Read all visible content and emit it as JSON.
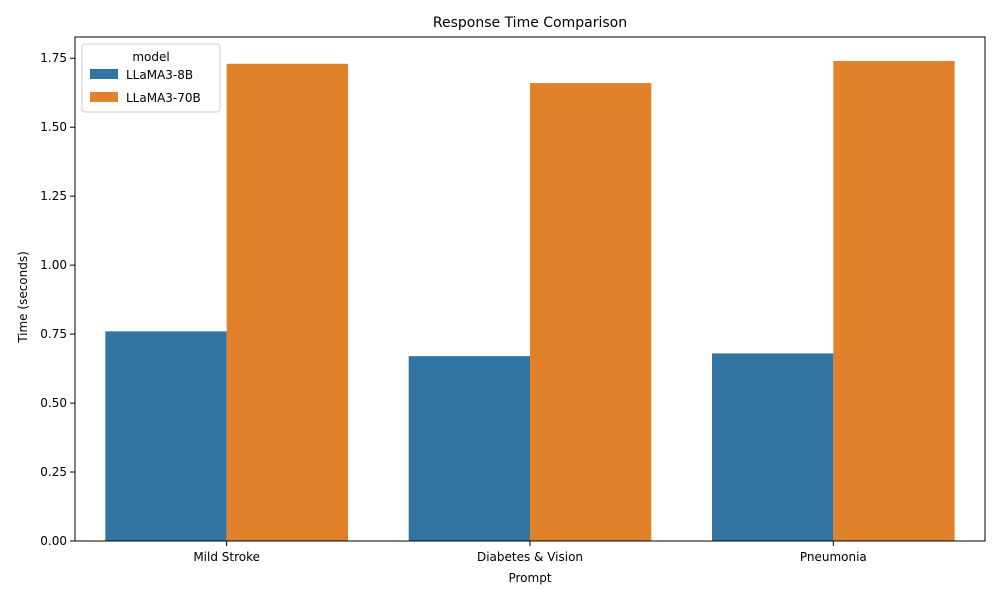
{
  "chart_data": {
    "type": "bar",
    "title": "Response Time Comparison",
    "xlabel": "Prompt",
    "ylabel": "Time (seconds)",
    "categories": [
      "Mild Stroke",
      "Diabetes & Vision",
      "Pneumonia"
    ],
    "series": [
      {
        "name": "LLaMA3-8B",
        "values": [
          0.76,
          0.67,
          0.68
        ],
        "color": "#3274a1"
      },
      {
        "name": "LLaMA3-70B",
        "values": [
          1.73,
          1.66,
          1.74
        ],
        "color": "#e1812c"
      }
    ],
    "ylim": [
      0,
      1.827
    ],
    "yticks": [
      0.0,
      0.25,
      0.5,
      0.75,
      1.0,
      1.25,
      1.5,
      1.75
    ],
    "ytick_labels": [
      "0.00",
      "0.25",
      "0.50",
      "0.75",
      "1.00",
      "1.25",
      "1.50",
      "1.75"
    ],
    "grid": false,
    "legend": {
      "title": "model",
      "placement": "top-left"
    }
  }
}
